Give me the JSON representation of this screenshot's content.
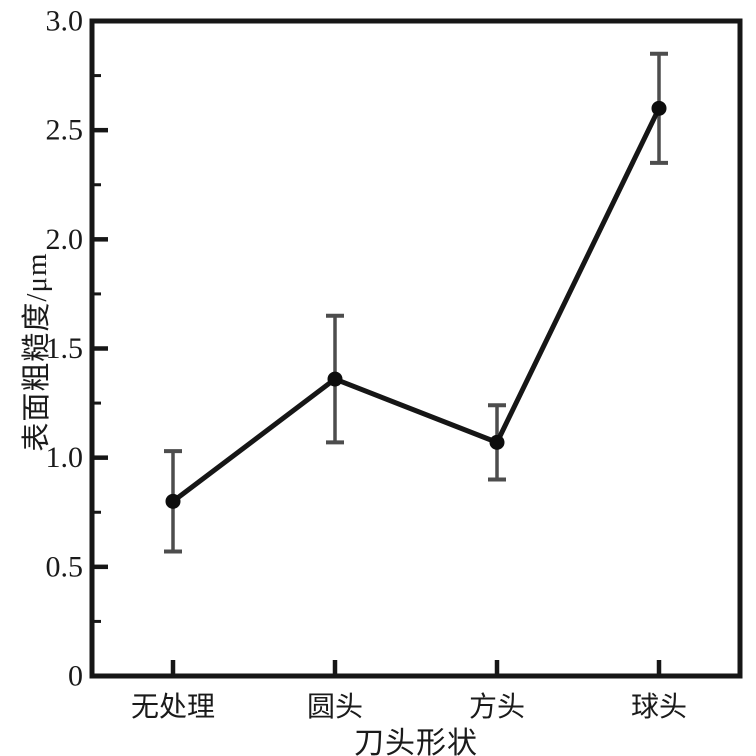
{
  "chart_data": {
    "type": "line",
    "title": "",
    "xlabel": "刀头形状",
    "ylabel": "表面粗糙度/μm",
    "categories": [
      "无处理",
      "圆头",
      "方头",
      "球头"
    ],
    "series": [
      {
        "name": "表面粗糙度",
        "values": [
          0.8,
          1.36,
          1.07,
          2.6
        ],
        "errors": [
          0.23,
          0.29,
          0.17,
          0.25
        ]
      }
    ],
    "ylim": [
      0,
      3.0
    ],
    "yticks": [
      {
        "value": 3.0,
        "label": "3.0"
      },
      {
        "value": 2.5,
        "label": "2.5"
      },
      {
        "value": 2.0,
        "label": "2.0"
      },
      {
        "value": 1.5,
        "label": "1.5"
      },
      {
        "value": 1.0,
        "label": "1.0"
      },
      {
        "value": 0.5,
        "label": "0.5"
      },
      {
        "value": 0,
        "label": "0"
      }
    ],
    "y_minor_ticks": [
      2.75,
      2.25,
      1.75,
      1.25,
      0.75,
      0.25
    ],
    "grid": false,
    "legend": null,
    "marker": "filled-circle",
    "error_caps": true,
    "colors": {
      "background": "#ffffff",
      "axis": "#161616",
      "line": "#161616",
      "marker": "#0d0d0d",
      "error_bar": "#4d4d4d",
      "text": "#1a1a1a"
    }
  }
}
